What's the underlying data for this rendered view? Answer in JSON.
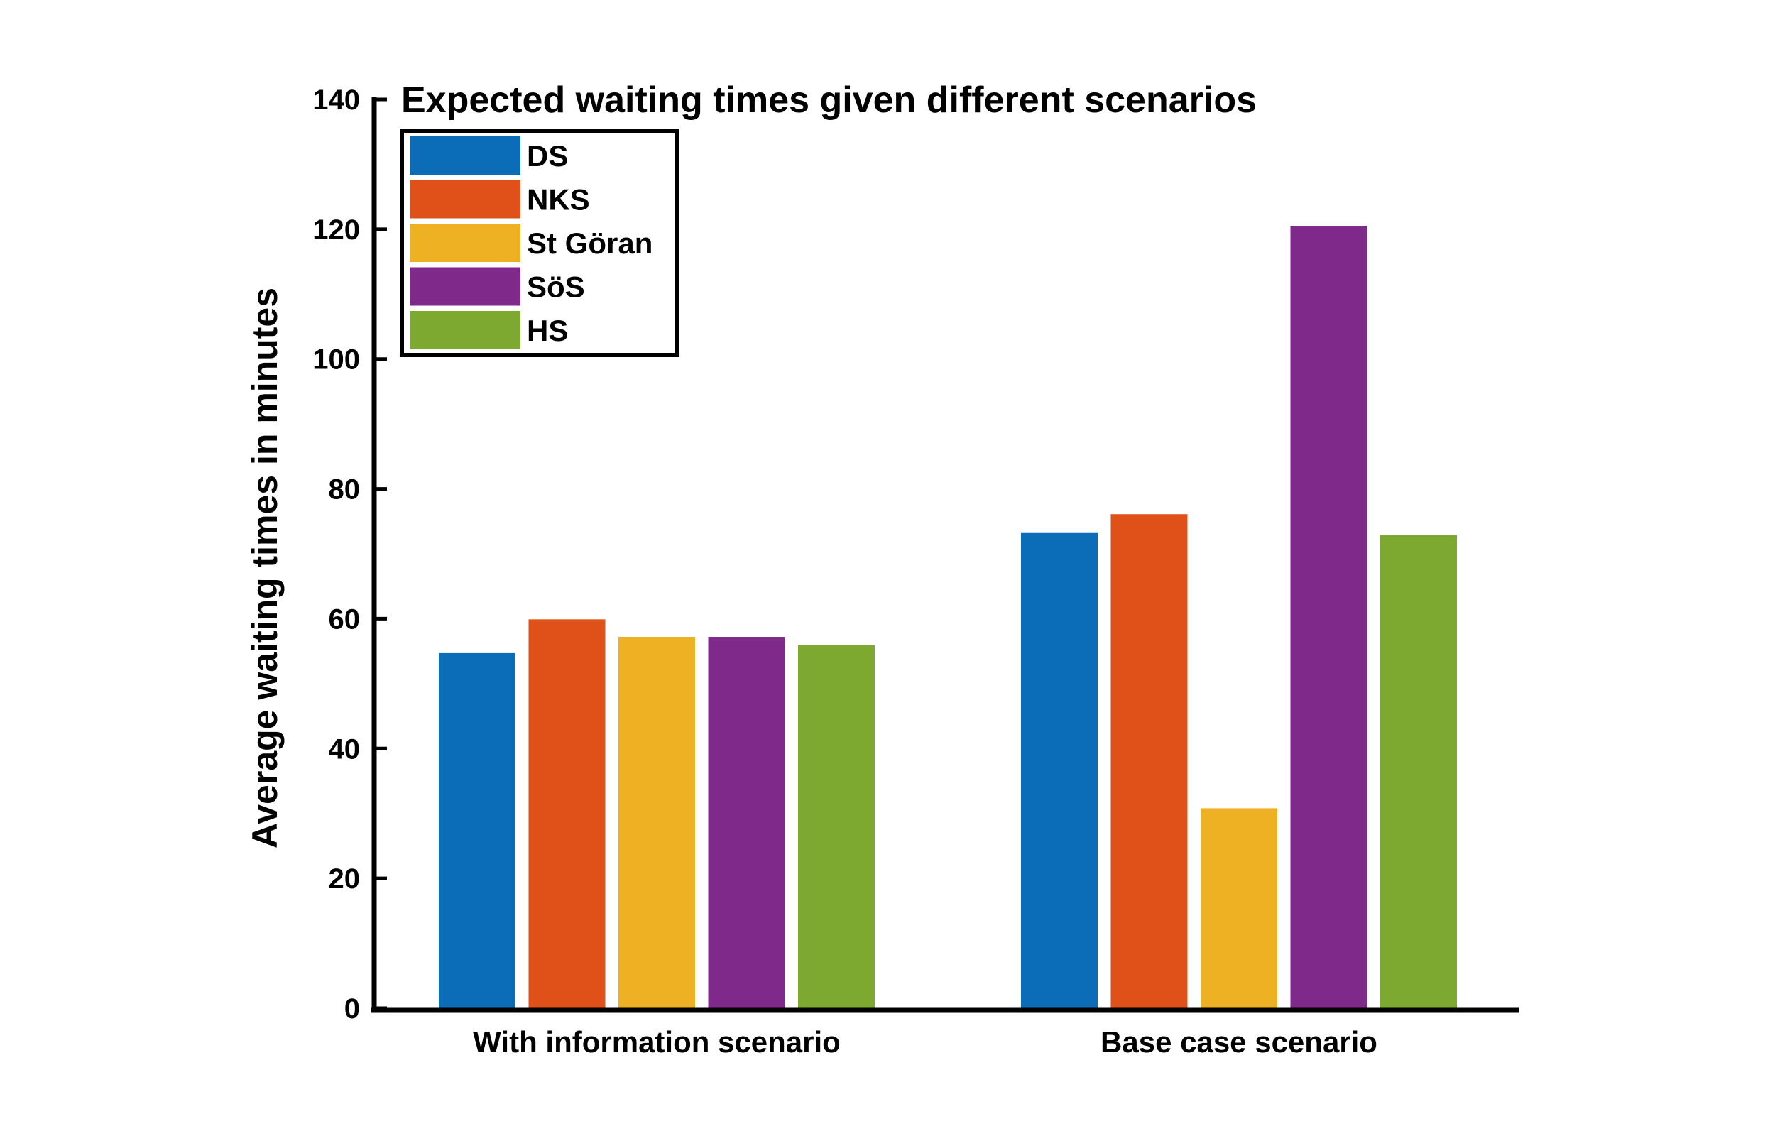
{
  "chart_data": {
    "type": "bar",
    "title": "Expected waiting times given different scenarios",
    "xlabel": "",
    "ylabel": "Average waiting times in minutes",
    "ylim": [
      0,
      140
    ],
    "yticks": [
      0,
      20,
      40,
      60,
      80,
      100,
      120,
      140
    ],
    "categories": [
      "With information scenario",
      "Base case scenario"
    ],
    "series": [
      {
        "name": "DS",
        "color": "#0b6db7",
        "values": [
          54.7,
          73.2
        ]
      },
      {
        "name": "NKS",
        "color": "#e05019",
        "values": [
          59.9,
          76.1
        ]
      },
      {
        "name": "St Göran",
        "color": "#eeb123",
        "values": [
          57.2,
          30.8
        ]
      },
      {
        "name": "SöS",
        "color": "#7f2a8a",
        "values": [
          57.2,
          120.5
        ]
      },
      {
        "name": "HS",
        "color": "#7da930",
        "values": [
          55.9,
          72.9
        ]
      }
    ],
    "legend_position": "top-left",
    "grid": false
  }
}
